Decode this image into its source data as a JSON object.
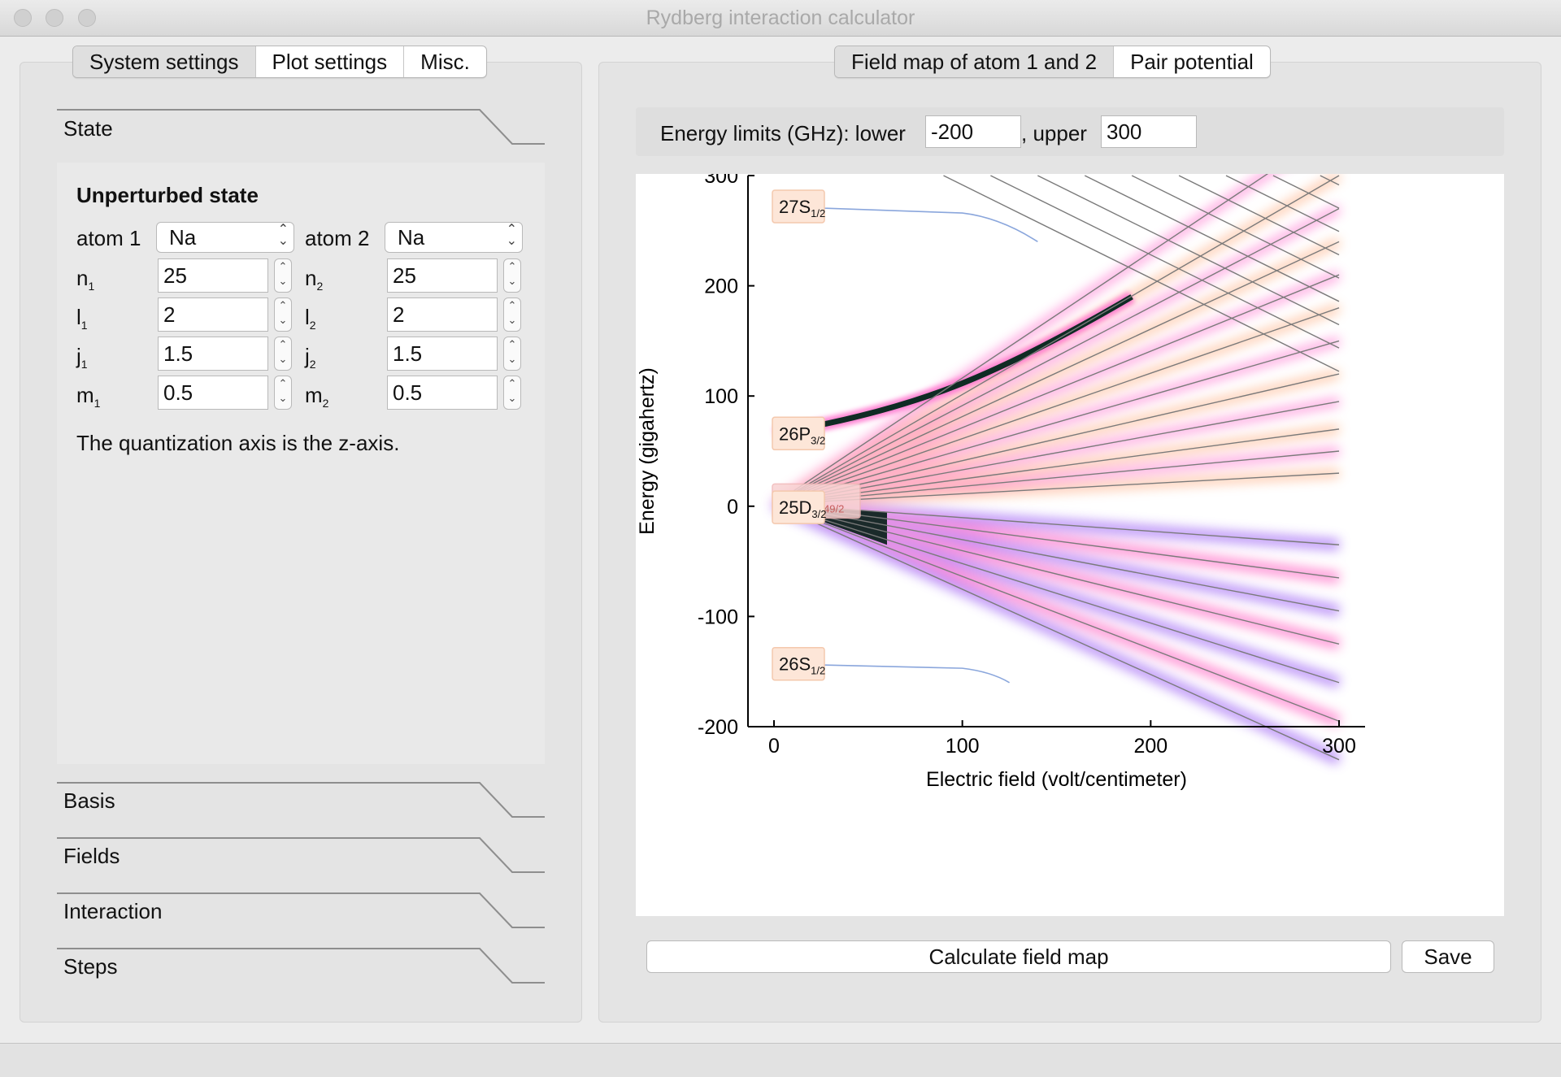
{
  "window": {
    "title": "Rydberg interaction calculator"
  },
  "left_tabs": [
    "System settings",
    "Plot settings",
    "Misc."
  ],
  "right_tabs": [
    "Field map of atom 1 and 2",
    "Pair potential"
  ],
  "sections": {
    "state": "State",
    "basis": "Basis",
    "fields": "Fields",
    "interaction": "Interaction",
    "steps": "Steps"
  },
  "state": {
    "heading": "Unperturbed state",
    "atom1_label": "atom 1",
    "atom2_label": "atom 2",
    "atom1_value": "Na",
    "atom2_value": "Na",
    "n1": "25",
    "n2": "25",
    "l1": "2",
    "l2": "2",
    "j1": "1.5",
    "j2": "1.5",
    "m1": "0.5",
    "m2": "0.5",
    "quant_note": "The quantization axis is the z-axis."
  },
  "energy_limits": {
    "label": "Energy limits (GHz): lower",
    "lower": "-200",
    "upper_label": ", upper",
    "upper": "300"
  },
  "buttons": {
    "calculate": "Calculate field map",
    "save": "Save"
  },
  "chart_data": {
    "type": "line",
    "xlabel": "Electric field (volt/centimeter)",
    "ylabel": "Energy (gigahertz)",
    "xlim": [
      0,
      300
    ],
    "ylim": [
      -200,
      300
    ],
    "x_ticks": [
      "0",
      "100",
      "200",
      "300"
    ],
    "y_ticks": [
      "-200",
      "-100",
      "0",
      "100",
      "200",
      "300"
    ],
    "state_labels": [
      {
        "text": "27S",
        "sub": "1/2",
        "energy": 272
      },
      {
        "text": "26P",
        "sub": "3/2",
        "energy": 66
      },
      {
        "text": "25,24",
        "sub": "49/2",
        "energy": 4
      },
      {
        "text": "25D",
        "sub": "3/2",
        "energy": -1
      },
      {
        "text": "26S",
        "sub": "1/2",
        "energy": -143
      }
    ],
    "manifold": {
      "origin_energy": 2,
      "upper_fan_energies_at_300": [
        345,
        300,
        270,
        240,
        210,
        180,
        150,
        120,
        95,
        70,
        50,
        30
      ],
      "lower_fan_energies_at_300": [
        -35,
        -65,
        -95,
        -125,
        -160,
        -195,
        -230
      ]
    },
    "highlight_colors": [
      "#000000",
      "#3a5fd8",
      "#a56ef5",
      "#ff6ec7",
      "#ffc8a0"
    ]
  }
}
